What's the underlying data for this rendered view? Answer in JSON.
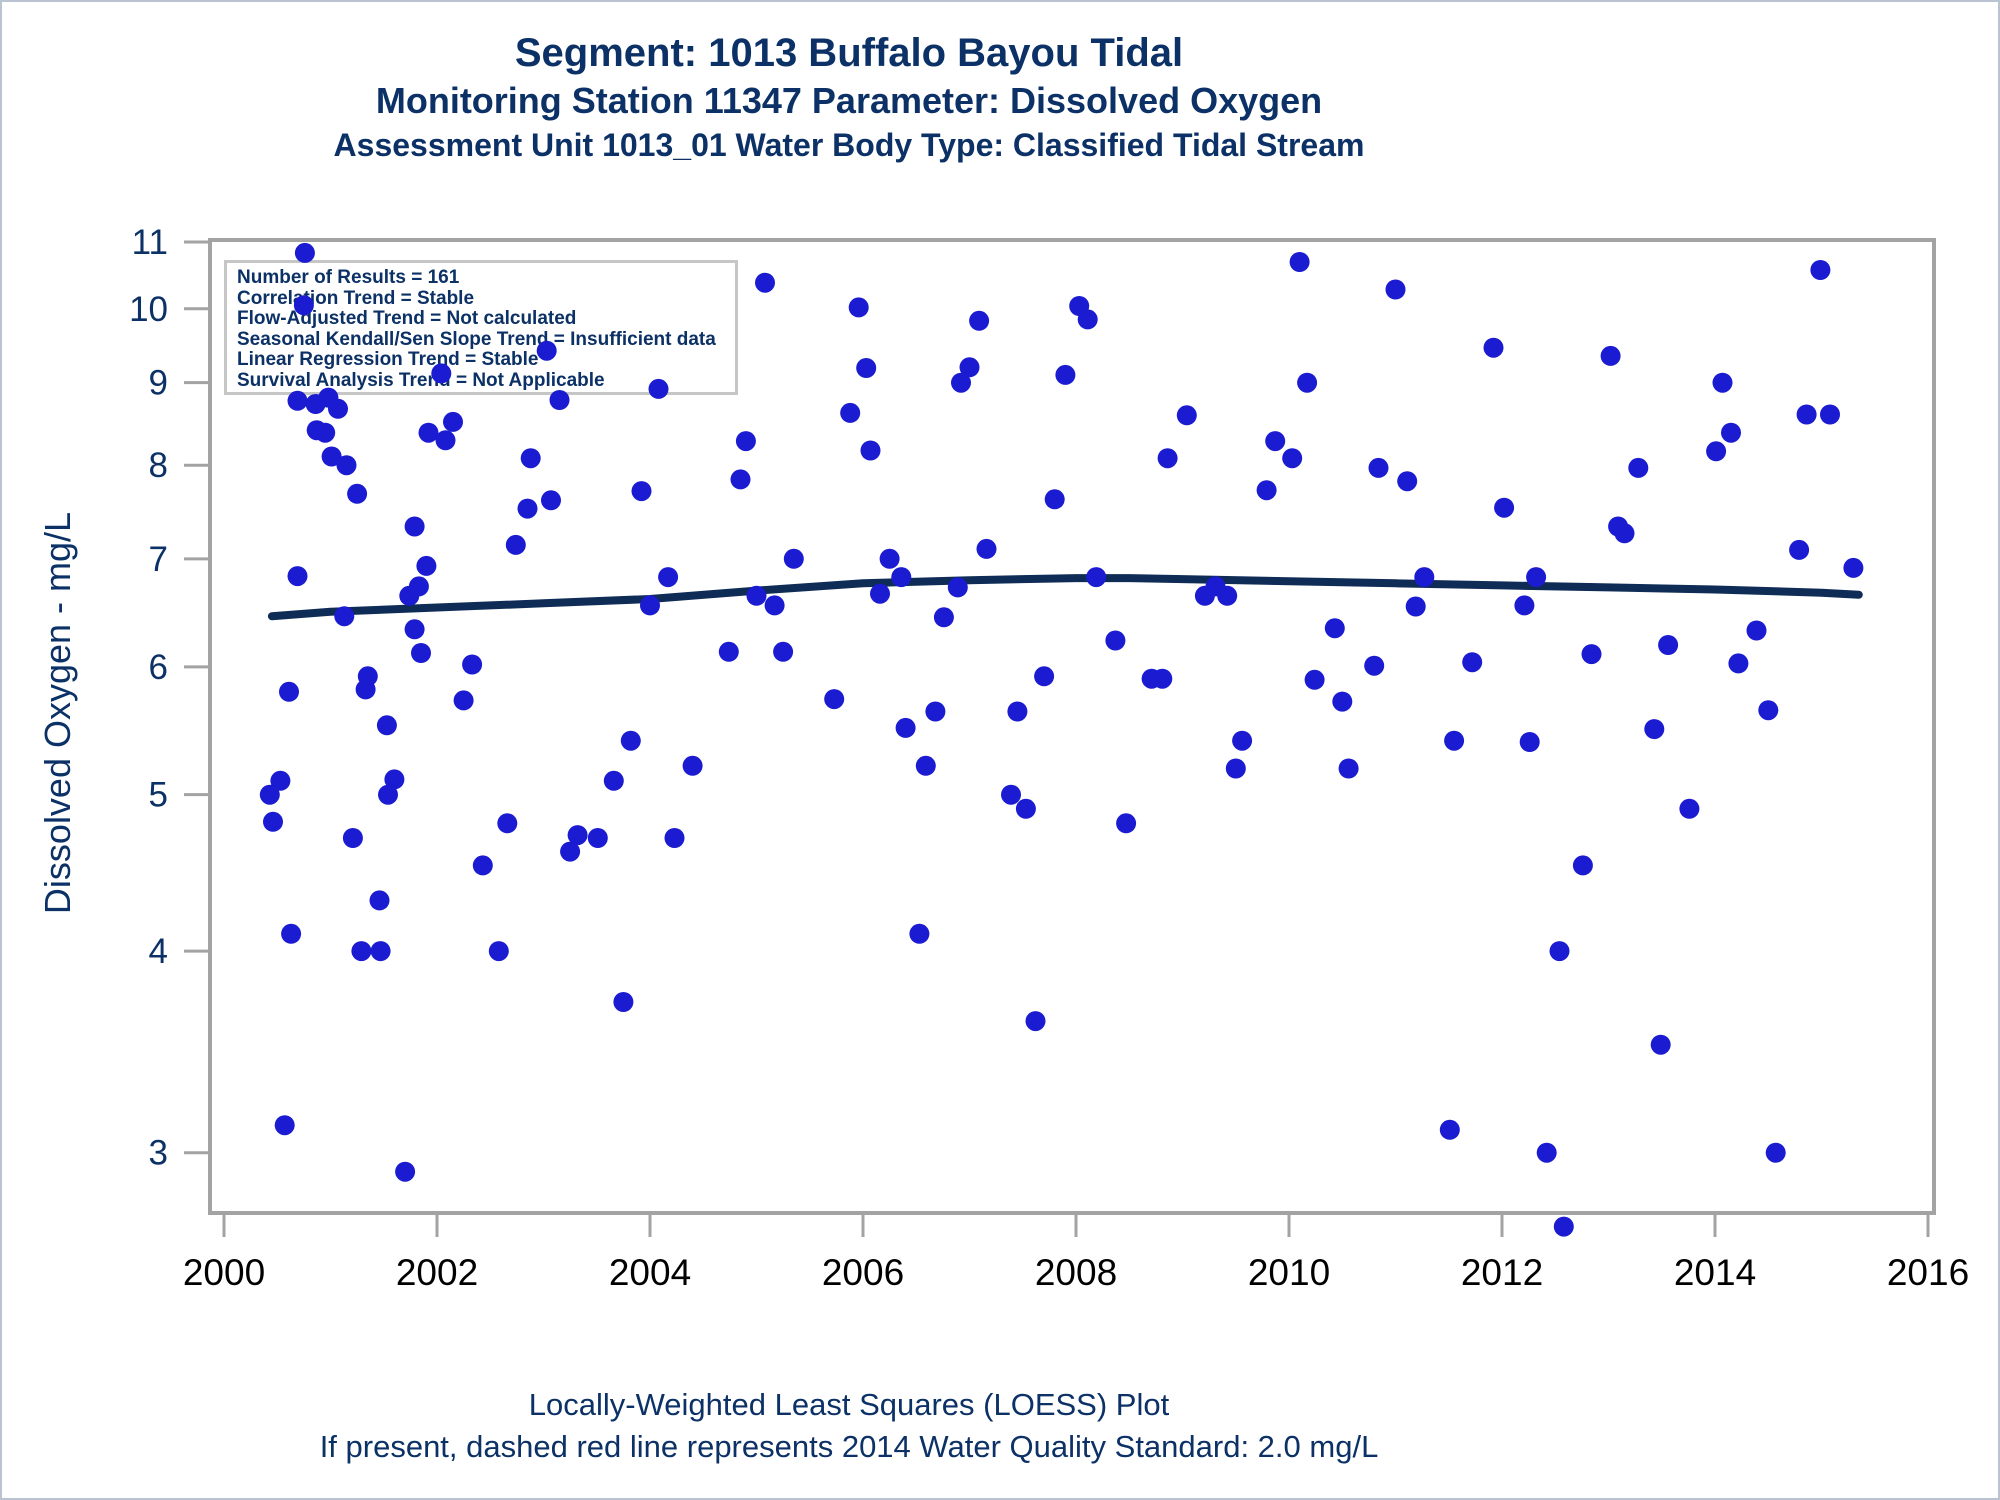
{
  "header": {
    "title_line1": "Segment: 1013  Buffalo Bayou Tidal",
    "title_line2": "Monitoring Station 11347 Parameter: Dissolved Oxygen",
    "title_line3": "Assessment Unit 1013_01   Water Body Type: Classified Tidal Stream"
  },
  "inset_box": {
    "lines": [
      "Number of Results = 161",
      "Correlation Trend = Stable",
      "Flow-Adjusted Trend = Not calculated",
      "Seasonal Kendall/Sen Slope Trend = Insufficient data",
      "Linear Regression Trend = Stable",
      "Survival Analysis Trend = Not Applicable"
    ]
  },
  "footer": {
    "line1": "Locally-Weighted Least Squares (LOESS) Plot",
    "line2": "If present, dashed red line represents 2014 Water Quality Standard: 2.0 mg/L"
  },
  "colors": {
    "title_navy": "#0c3166",
    "marker_blue": "#1b1bd2",
    "loess_navy": "#0f2c56",
    "axis_gray": "#a3a3a3",
    "x_label_black": "#000000",
    "inset_border_gray": "#c6c6c6"
  },
  "chart_data": {
    "type": "scatter",
    "title": "Segment: 1013 Buffalo Bayou Tidal",
    "xlabel": "",
    "ylabel": "Dissolved Oxygen - mg/L",
    "x_ticks": [
      2000,
      2002,
      2004,
      2006,
      2008,
      2010,
      2012,
      2014,
      2016
    ],
    "y_ticks": [
      3,
      4,
      5,
      6,
      7,
      8,
      9,
      10,
      11
    ],
    "x_range": [
      1999.87,
      2016.06
    ],
    "y_range": [
      2.75,
      11.03
    ],
    "y_scale": "log",
    "grid": false,
    "legend": "none",
    "points": [
      [
        2000.76,
        10.83
      ],
      [
        2000.75,
        10.05
      ],
      [
        2002.04,
        9.12
      ],
      [
        2003.03,
        9.42
      ],
      [
        2000.69,
        8.77
      ],
      [
        2000.86,
        8.73
      ],
      [
        2000.98,
        8.81
      ],
      [
        2001.07,
        8.67
      ],
      [
        2003.15,
        8.78
      ],
      [
        2002.15,
        8.51
      ],
      [
        2001.92,
        8.38
      ],
      [
        2002.08,
        8.29
      ],
      [
        2000.87,
        8.41
      ],
      [
        2000.95,
        8.38
      ],
      [
        2002.88,
        8.08
      ],
      [
        2001.01,
        8.1
      ],
      [
        2001.15,
        8.0
      ],
      [
        2003.07,
        7.61
      ],
      [
        2002.85,
        7.52
      ],
      [
        2001.25,
        7.68
      ],
      [
        2001.79,
        7.33
      ],
      [
        2002.74,
        7.14
      ],
      [
        2001.9,
        6.93
      ],
      [
        2001.83,
        6.73
      ],
      [
        2001.74,
        6.64
      ],
      [
        2000.69,
        6.83
      ],
      [
        2001.13,
        6.45
      ],
      [
        2001.79,
        6.33
      ],
      [
        2001.85,
        6.12
      ],
      [
        2002.33,
        6.02
      ],
      [
        2001.35,
        5.92
      ],
      [
        2001.33,
        5.81
      ],
      [
        2000.61,
        5.79
      ],
      [
        2002.25,
        5.72
      ],
      [
        2001.53,
        5.52
      ],
      [
        2003.82,
        5.4
      ],
      [
        2000.53,
        5.1
      ],
      [
        2000.43,
        5.0
      ],
      [
        2000.46,
        4.81
      ],
      [
        2001.21,
        4.7
      ],
      [
        2001.6,
        5.11
      ],
      [
        2001.54,
        5.0
      ],
      [
        2002.66,
        4.8
      ],
      [
        2003.32,
        4.72
      ],
      [
        2003.51,
        4.7
      ],
      [
        2003.25,
        4.61
      ],
      [
        2002.43,
        4.52
      ],
      [
        2001.46,
        4.3
      ],
      [
        2000.63,
        4.1
      ],
      [
        2001.29,
        4.0
      ],
      [
        2001.47,
        4.0
      ],
      [
        2002.58,
        4.0
      ],
      [
        2003.75,
        3.72
      ],
      [
        2000.57,
        3.12
      ],
      [
        2001.7,
        2.92
      ],
      [
        2003.66,
        5.1
      ],
      [
        2005.08,
        10.38
      ],
      [
        2005.96,
        10.02
      ],
      [
        2007.09,
        9.83
      ],
      [
        2006.03,
        9.19
      ],
      [
        2006.92,
        9.0
      ],
      [
        2007.0,
        9.2
      ],
      [
        2007.9,
        9.1
      ],
      [
        2004.08,
        8.92
      ],
      [
        2005.88,
        8.62
      ],
      [
        2004.9,
        8.28
      ],
      [
        2006.07,
        8.17
      ],
      [
        2004.85,
        7.84
      ],
      [
        2003.92,
        7.71
      ],
      [
        2007.8,
        7.62
      ],
      [
        2005.35,
        7.0
      ],
      [
        2006.25,
        7.0
      ],
      [
        2007.16,
        7.1
      ],
      [
        2004.17,
        6.82
      ],
      [
        2006.36,
        6.82
      ],
      [
        2006.16,
        6.66
      ],
      [
        2005.0,
        6.64
      ],
      [
        2005.17,
        6.55
      ],
      [
        2004.0,
        6.55
      ],
      [
        2006.89,
        6.72
      ],
      [
        2006.76,
        6.44
      ],
      [
        2004.74,
        6.13
      ],
      [
        2005.25,
        6.13
      ],
      [
        2007.7,
        5.92
      ],
      [
        2005.73,
        5.73
      ],
      [
        2006.68,
        5.63
      ],
      [
        2007.45,
        5.63
      ],
      [
        2006.4,
        5.5
      ],
      [
        2004.4,
        5.21
      ],
      [
        2006.59,
        5.21
      ],
      [
        2007.39,
        5.0
      ],
      [
        2007.53,
        4.9
      ],
      [
        2004.23,
        4.7
      ],
      [
        2006.53,
        4.1
      ],
      [
        2007.62,
        3.62
      ],
      [
        2010.1,
        10.69
      ],
      [
        2011.0,
        10.28
      ],
      [
        2008.03,
        10.04
      ],
      [
        2008.11,
        9.85
      ],
      [
        2011.92,
        9.46
      ],
      [
        2010.17,
        9.0
      ],
      [
        2009.04,
        8.59
      ],
      [
        2009.87,
        8.28
      ],
      [
        2010.03,
        8.08
      ],
      [
        2008.86,
        8.08
      ],
      [
        2010.84,
        7.97
      ],
      [
        2011.11,
        7.82
      ],
      [
        2009.79,
        7.72
      ],
      [
        2008.19,
        6.82
      ],
      [
        2011.27,
        6.82
      ],
      [
        2009.31,
        6.73
      ],
      [
        2009.21,
        6.64
      ],
      [
        2009.42,
        6.64
      ],
      [
        2011.19,
        6.54
      ],
      [
        2010.43,
        6.34
      ],
      [
        2008.37,
        6.23
      ],
      [
        2011.72,
        6.04
      ],
      [
        2010.8,
        6.01
      ],
      [
        2008.71,
        5.9
      ],
      [
        2008.81,
        5.9
      ],
      [
        2010.24,
        5.89
      ],
      [
        2010.5,
        5.71
      ],
      [
        2009.56,
        5.4
      ],
      [
        2009.5,
        5.19
      ],
      [
        2010.56,
        5.19
      ],
      [
        2011.55,
        5.4
      ],
      [
        2008.47,
        4.8
      ],
      [
        2011.51,
        3.1
      ],
      [
        2014.99,
        10.57
      ],
      [
        2013.02,
        9.35
      ],
      [
        2014.07,
        9.0
      ],
      [
        2014.86,
        8.6
      ],
      [
        2015.08,
        8.6
      ],
      [
        2014.15,
        8.38
      ],
      [
        2014.01,
        8.16
      ],
      [
        2013.28,
        7.97
      ],
      [
        2012.02,
        7.53
      ],
      [
        2013.09,
        7.33
      ],
      [
        2013.15,
        7.26
      ],
      [
        2014.79,
        7.09
      ],
      [
        2015.3,
        6.91
      ],
      [
        2012.32,
        6.82
      ],
      [
        2012.21,
        6.55
      ],
      [
        2014.39,
        6.32
      ],
      [
        2013.56,
        6.19
      ],
      [
        2012.84,
        6.11
      ],
      [
        2014.22,
        6.03
      ],
      [
        2014.5,
        5.64
      ],
      [
        2013.43,
        5.49
      ],
      [
        2012.26,
        5.39
      ],
      [
        2013.76,
        4.9
      ],
      [
        2012.76,
        4.52
      ],
      [
        2012.54,
        4.0
      ],
      [
        2013.49,
        3.5
      ],
      [
        2012.42,
        3.0
      ],
      [
        2014.57,
        3.0
      ],
      [
        2012.58,
        2.7
      ]
    ],
    "loess_line": [
      [
        2000.45,
        6.45
      ],
      [
        2001.0,
        6.49
      ],
      [
        2002.0,
        6.53
      ],
      [
        2003.0,
        6.57
      ],
      [
        2004.0,
        6.61
      ],
      [
        2005.0,
        6.69
      ],
      [
        2006.0,
        6.76
      ],
      [
        2007.0,
        6.79
      ],
      [
        2008.0,
        6.81
      ],
      [
        2008.5,
        6.81
      ],
      [
        2009.0,
        6.8
      ],
      [
        2010.0,
        6.78
      ],
      [
        2011.0,
        6.76
      ],
      [
        2012.0,
        6.74
      ],
      [
        2013.0,
        6.72
      ],
      [
        2014.0,
        6.7
      ],
      [
        2015.0,
        6.67
      ],
      [
        2015.35,
        6.65
      ]
    ]
  }
}
